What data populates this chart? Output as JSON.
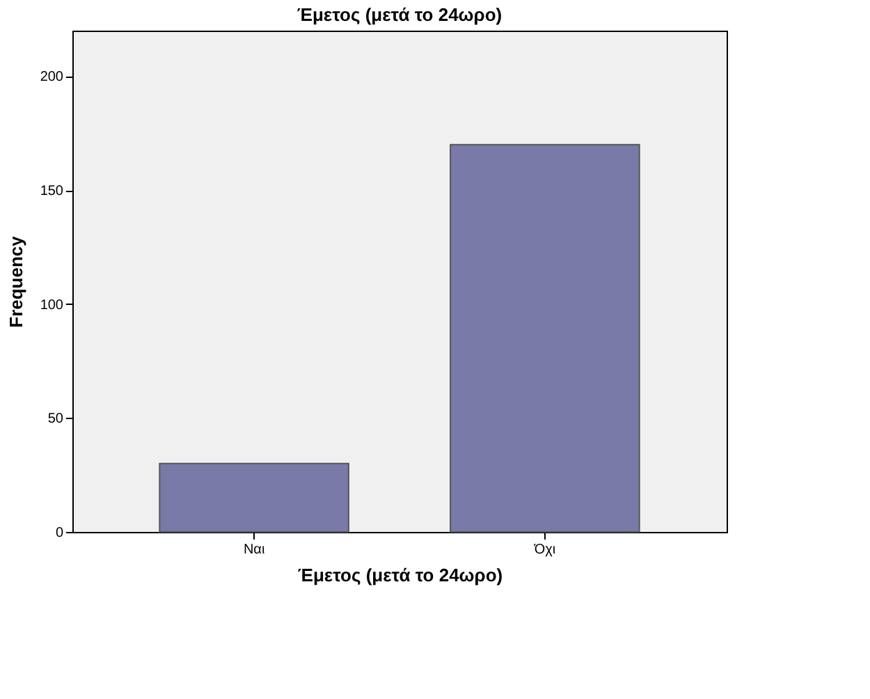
{
  "chart_data": {
    "type": "bar",
    "title": "Έμετος (μετά το 24ωρο)",
    "xlabel": "Έμετος (μετά το 24ωρο)",
    "ylabel": "Frequency",
    "categories": [
      "Ναι",
      "Όχι"
    ],
    "values": [
      30,
      170
    ],
    "color": "#7a7aa8",
    "ylim": [
      0,
      220
    ],
    "yticks": [
      0,
      50,
      100,
      150,
      200
    ],
    "grid": false
  }
}
